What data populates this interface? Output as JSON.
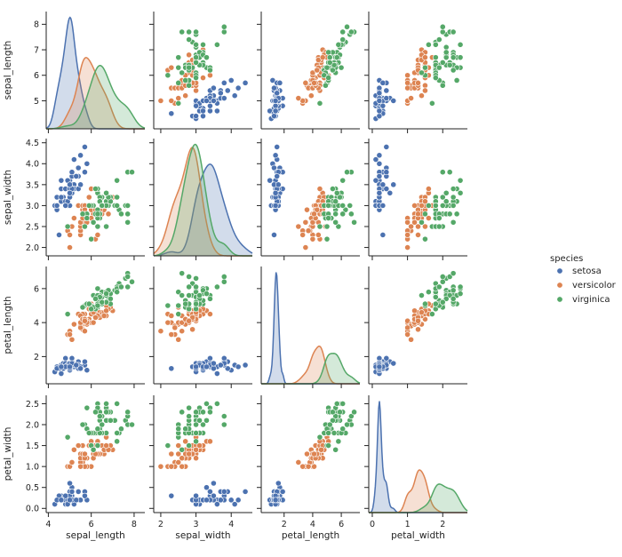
{
  "chart_data": {
    "type": "pairplot",
    "grid": false,
    "variables": [
      "sepal_length",
      "sepal_width",
      "petal_length",
      "petal_width"
    ],
    "ranges": {
      "sepal_length": [
        3.9,
        8.5
      ],
      "sepal_width": [
        1.8,
        4.6
      ],
      "petal_length": [
        0.4,
        7.3
      ],
      "petal_width": [
        -0.1,
        2.7
      ]
    },
    "ticks": {
      "sepal_length": [
        4,
        6,
        8
      ],
      "sepal_width": [
        2,
        3,
        4,
        5
      ],
      "petal_length": [
        2,
        4,
        6,
        8
      ],
      "petal_width": [
        0,
        1,
        2,
        3
      ]
    },
    "ticks_on_y": {
      "sepal_length": [
        5,
        6,
        7,
        8
      ],
      "sepal_width": [
        2.0,
        2.5,
        3.0,
        3.5,
        4.0,
        4.5
      ],
      "petal_length": [
        2,
        4,
        6
      ],
      "petal_width": [
        0.0,
        0.5,
        1.0,
        1.5,
        2.0,
        2.5
      ]
    },
    "legend": {
      "title": "species",
      "placement": "right",
      "entries": [
        "setosa",
        "versicolor",
        "virginica"
      ]
    },
    "colors": {
      "setosa": "#4c72b0",
      "versicolor": "#dd8452",
      "virginica": "#55a868"
    },
    "series": [
      {
        "name": "setosa",
        "points": [
          [
            5.1,
            3.5,
            1.4,
            0.2
          ],
          [
            4.9,
            3.0,
            1.4,
            0.2
          ],
          [
            4.7,
            3.2,
            1.3,
            0.2
          ],
          [
            4.6,
            3.1,
            1.5,
            0.2
          ],
          [
            5.0,
            3.6,
            1.4,
            0.2
          ],
          [
            5.4,
            3.9,
            1.7,
            0.4
          ],
          [
            4.6,
            3.4,
            1.4,
            0.3
          ],
          [
            5.0,
            3.4,
            1.5,
            0.2
          ],
          [
            4.4,
            2.9,
            1.4,
            0.2
          ],
          [
            4.9,
            3.1,
            1.5,
            0.1
          ],
          [
            5.4,
            3.7,
            1.5,
            0.2
          ],
          [
            4.8,
            3.4,
            1.6,
            0.2
          ],
          [
            4.8,
            3.0,
            1.4,
            0.1
          ],
          [
            4.3,
            3.0,
            1.1,
            0.1
          ],
          [
            5.8,
            4.0,
            1.2,
            0.2
          ],
          [
            5.7,
            4.4,
            1.5,
            0.4
          ],
          [
            5.4,
            3.9,
            1.3,
            0.4
          ],
          [
            5.1,
            3.5,
            1.4,
            0.3
          ],
          [
            5.7,
            3.8,
            1.7,
            0.3
          ],
          [
            5.1,
            3.8,
            1.5,
            0.3
          ],
          [
            5.4,
            3.4,
            1.7,
            0.2
          ],
          [
            5.1,
            3.7,
            1.5,
            0.4
          ],
          [
            4.6,
            3.6,
            1.0,
            0.2
          ],
          [
            5.1,
            3.3,
            1.7,
            0.5
          ],
          [
            4.8,
            3.4,
            1.9,
            0.2
          ],
          [
            5.0,
            3.0,
            1.6,
            0.2
          ],
          [
            5.0,
            3.4,
            1.6,
            0.4
          ],
          [
            5.2,
            3.5,
            1.5,
            0.2
          ],
          [
            5.2,
            3.4,
            1.4,
            0.2
          ],
          [
            4.7,
            3.2,
            1.6,
            0.2
          ],
          [
            4.8,
            3.1,
            1.6,
            0.2
          ],
          [
            5.4,
            3.4,
            1.5,
            0.4
          ],
          [
            5.2,
            4.1,
            1.5,
            0.1
          ],
          [
            5.5,
            4.2,
            1.4,
            0.2
          ],
          [
            4.9,
            3.1,
            1.5,
            0.2
          ],
          [
            5.0,
            3.2,
            1.2,
            0.2
          ],
          [
            5.5,
            3.5,
            1.3,
            0.2
          ],
          [
            4.9,
            3.6,
            1.4,
            0.1
          ],
          [
            4.4,
            3.0,
            1.3,
            0.2
          ],
          [
            5.1,
            3.4,
            1.5,
            0.2
          ],
          [
            5.0,
            3.5,
            1.3,
            0.3
          ],
          [
            4.5,
            2.3,
            1.3,
            0.3
          ],
          [
            4.4,
            3.2,
            1.3,
            0.2
          ],
          [
            5.0,
            3.5,
            1.6,
            0.6
          ],
          [
            5.1,
            3.8,
            1.9,
            0.4
          ],
          [
            4.8,
            3.0,
            1.4,
            0.3
          ],
          [
            5.1,
            3.8,
            1.6,
            0.2
          ],
          [
            4.6,
            3.2,
            1.4,
            0.2
          ],
          [
            5.3,
            3.7,
            1.5,
            0.2
          ],
          [
            5.0,
            3.3,
            1.4,
            0.2
          ]
        ]
      },
      {
        "name": "versicolor",
        "points": [
          [
            7.0,
            3.2,
            4.7,
            1.4
          ],
          [
            6.4,
            3.2,
            4.5,
            1.5
          ],
          [
            6.9,
            3.1,
            4.9,
            1.5
          ],
          [
            5.5,
            2.3,
            4.0,
            1.3
          ],
          [
            6.5,
            2.8,
            4.6,
            1.5
          ],
          [
            5.7,
            2.8,
            4.5,
            1.3
          ],
          [
            6.3,
            3.3,
            4.7,
            1.6
          ],
          [
            4.9,
            2.4,
            3.3,
            1.0
          ],
          [
            6.6,
            2.9,
            4.6,
            1.3
          ],
          [
            5.2,
            2.7,
            3.9,
            1.4
          ],
          [
            5.0,
            2.0,
            3.5,
            1.0
          ],
          [
            5.9,
            3.0,
            4.2,
            1.5
          ],
          [
            6.0,
            2.2,
            4.0,
            1.0
          ],
          [
            6.1,
            2.9,
            4.7,
            1.4
          ],
          [
            5.6,
            2.9,
            3.6,
            1.3
          ],
          [
            6.7,
            3.1,
            4.4,
            1.4
          ],
          [
            5.6,
            3.0,
            4.5,
            1.5
          ],
          [
            5.8,
            2.7,
            4.1,
            1.0
          ],
          [
            6.2,
            2.2,
            4.5,
            1.5
          ],
          [
            5.6,
            2.5,
            3.9,
            1.1
          ],
          [
            5.9,
            3.2,
            4.8,
            1.8
          ],
          [
            6.1,
            2.8,
            4.0,
            1.3
          ],
          [
            6.3,
            2.5,
            4.9,
            1.5
          ],
          [
            6.1,
            2.8,
            4.7,
            1.2
          ],
          [
            6.4,
            2.9,
            4.3,
            1.3
          ],
          [
            6.6,
            3.0,
            4.4,
            1.4
          ],
          [
            6.8,
            2.8,
            4.8,
            1.4
          ],
          [
            6.7,
            3.0,
            5.0,
            1.7
          ],
          [
            6.0,
            2.9,
            4.5,
            1.5
          ],
          [
            5.7,
            2.6,
            3.5,
            1.0
          ],
          [
            5.5,
            2.4,
            3.8,
            1.1
          ],
          [
            5.5,
            2.4,
            3.7,
            1.0
          ],
          [
            5.8,
            2.7,
            3.9,
            1.2
          ],
          [
            6.0,
            2.7,
            5.1,
            1.6
          ],
          [
            5.4,
            3.0,
            4.5,
            1.5
          ],
          [
            6.0,
            3.4,
            4.5,
            1.6
          ],
          [
            6.7,
            3.1,
            4.7,
            1.5
          ],
          [
            6.3,
            2.3,
            4.4,
            1.3
          ],
          [
            5.6,
            3.0,
            4.1,
            1.3
          ],
          [
            5.5,
            2.5,
            4.0,
            1.3
          ],
          [
            5.5,
            2.6,
            4.4,
            1.2
          ],
          [
            6.1,
            3.0,
            4.6,
            1.4
          ],
          [
            5.8,
            2.6,
            4.0,
            1.2
          ],
          [
            5.0,
            2.3,
            3.3,
            1.0
          ],
          [
            5.6,
            2.7,
            4.2,
            1.3
          ],
          [
            5.7,
            3.0,
            4.2,
            1.2
          ],
          [
            5.7,
            2.9,
            4.2,
            1.3
          ],
          [
            6.2,
            2.9,
            4.3,
            1.3
          ],
          [
            5.1,
            2.5,
            3.0,
            1.1
          ],
          [
            5.7,
            2.8,
            4.1,
            1.3
          ]
        ]
      },
      {
        "name": "virginica",
        "points": [
          [
            6.3,
            3.3,
            6.0,
            2.5
          ],
          [
            5.8,
            2.7,
            5.1,
            1.9
          ],
          [
            7.1,
            3.0,
            5.9,
            2.1
          ],
          [
            6.3,
            2.9,
            5.6,
            1.8
          ],
          [
            6.5,
            3.0,
            5.8,
            2.2
          ],
          [
            7.6,
            3.0,
            6.6,
            2.1
          ],
          [
            4.9,
            2.5,
            4.5,
            1.7
          ],
          [
            7.3,
            2.9,
            6.3,
            1.8
          ],
          [
            6.7,
            2.5,
            5.8,
            1.8
          ],
          [
            7.2,
            3.6,
            6.1,
            2.5
          ],
          [
            6.5,
            3.2,
            5.1,
            2.0
          ],
          [
            6.4,
            2.7,
            5.3,
            1.9
          ],
          [
            6.8,
            3.0,
            5.5,
            2.1
          ],
          [
            5.7,
            2.5,
            5.0,
            2.0
          ],
          [
            5.8,
            2.8,
            5.1,
            2.4
          ],
          [
            6.4,
            3.2,
            5.3,
            2.3
          ],
          [
            6.5,
            3.0,
            5.5,
            1.8
          ],
          [
            7.7,
            3.8,
            6.7,
            2.2
          ],
          [
            7.7,
            2.6,
            6.9,
            2.3
          ],
          [
            6.0,
            2.2,
            5.0,
            1.5
          ],
          [
            6.9,
            3.2,
            5.7,
            2.3
          ],
          [
            5.6,
            2.8,
            4.9,
            2.0
          ],
          [
            7.7,
            2.8,
            6.7,
            2.0
          ],
          [
            6.3,
            2.7,
            4.9,
            1.8
          ],
          [
            6.7,
            3.3,
            5.7,
            2.1
          ],
          [
            7.2,
            3.2,
            6.0,
            1.8
          ],
          [
            6.2,
            2.8,
            4.8,
            1.8
          ],
          [
            6.1,
            3.0,
            4.9,
            1.8
          ],
          [
            6.4,
            2.8,
            5.6,
            2.1
          ],
          [
            7.2,
            3.0,
            5.8,
            1.6
          ],
          [
            7.4,
            2.8,
            6.1,
            1.9
          ],
          [
            7.9,
            3.8,
            6.4,
            2.0
          ],
          [
            6.4,
            2.8,
            5.6,
            2.2
          ],
          [
            6.3,
            2.8,
            5.1,
            1.5
          ],
          [
            6.1,
            2.6,
            5.6,
            1.4
          ],
          [
            7.7,
            3.0,
            6.1,
            2.3
          ],
          [
            6.3,
            3.4,
            5.6,
            2.4
          ],
          [
            6.4,
            3.1,
            5.5,
            1.8
          ],
          [
            6.0,
            3.0,
            4.8,
            1.8
          ],
          [
            6.9,
            3.1,
            5.4,
            2.1
          ],
          [
            6.7,
            3.1,
            5.6,
            2.4
          ],
          [
            6.9,
            3.1,
            5.1,
            2.3
          ],
          [
            5.8,
            2.7,
            5.1,
            1.9
          ],
          [
            6.8,
            3.2,
            5.9,
            2.3
          ],
          [
            6.7,
            3.3,
            5.7,
            2.5
          ],
          [
            6.7,
            3.0,
            5.2,
            2.3
          ],
          [
            6.3,
            2.5,
            5.0,
            1.9
          ],
          [
            6.5,
            3.0,
            5.2,
            2.0
          ],
          [
            6.2,
            3.4,
            5.4,
            2.3
          ],
          [
            5.9,
            3.0,
            5.1,
            1.8
          ]
        ]
      }
    ]
  }
}
